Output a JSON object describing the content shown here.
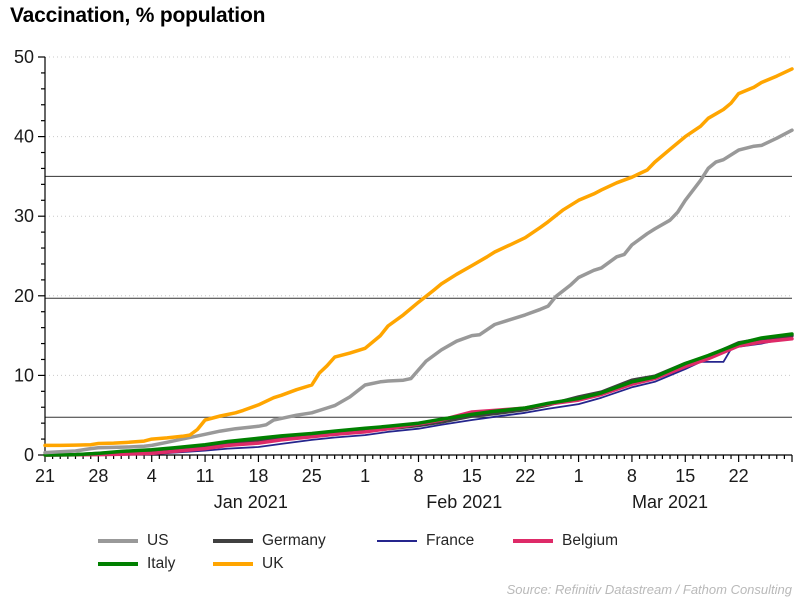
{
  "title": "Vaccination, % population",
  "source": "Source: Refinitiv Datastream / Fathom Consulting",
  "chart_data": {
    "type": "line",
    "title": "Vaccination, % population",
    "ylabel": "% population",
    "ylim": [
      0,
      50
    ],
    "y_ticks": [
      0,
      10,
      20,
      30,
      40,
      50
    ],
    "y_minor_step": 2,
    "grid": "dotted horizontal gridlines at major y ticks",
    "reference_lines": [
      4.75,
      19.7,
      35.0
    ],
    "x_start_date": "2020-12-21",
    "x_end_date": "2021-03-29",
    "x_days_total": 98,
    "x_tick_labels": [
      {
        "day": 0,
        "label": "21"
      },
      {
        "day": 7,
        "label": "28"
      },
      {
        "day": 14,
        "label": "4"
      },
      {
        "day": 21,
        "label": "11"
      },
      {
        "day": 28,
        "label": "18"
      },
      {
        "day": 35,
        "label": "25"
      },
      {
        "day": 42,
        "label": "1"
      },
      {
        "day": 49,
        "label": "8"
      },
      {
        "day": 56,
        "label": "15"
      },
      {
        "day": 63,
        "label": "22"
      },
      {
        "day": 70,
        "label": "1"
      },
      {
        "day": 77,
        "label": "8"
      },
      {
        "day": 84,
        "label": "15"
      },
      {
        "day": 91,
        "label": "22"
      }
    ],
    "month_labels": [
      {
        "day": 27,
        "label": "Jan 2021"
      },
      {
        "day": 55,
        "label": "Feb 2021"
      },
      {
        "day": 82,
        "label": "Mar 2021"
      }
    ],
    "legend_position": "bottom",
    "legend_order": [
      "US",
      "Germany",
      "France",
      "Belgium",
      "Italy",
      "UK"
    ],
    "series": [
      {
        "name": "France",
        "color": "#25258d",
        "width": 1.8,
        "points": [
          [
            0,
            0
          ],
          [
            10,
            0.05
          ],
          [
            14,
            0.1
          ],
          [
            17,
            0.3
          ],
          [
            21,
            0.55
          ],
          [
            24,
            0.8
          ],
          [
            28,
            1.0
          ],
          [
            31,
            1.4
          ],
          [
            35,
            1.9
          ],
          [
            38,
            2.2
          ],
          [
            42,
            2.5
          ],
          [
            45,
            2.9
          ],
          [
            49,
            3.3
          ],
          [
            52,
            3.8
          ],
          [
            56,
            4.4
          ],
          [
            59,
            4.8
          ],
          [
            63,
            5.3
          ],
          [
            66,
            5.8
          ],
          [
            70,
            6.4
          ],
          [
            73,
            7.2
          ],
          [
            77,
            8.5
          ],
          [
            80,
            9.2
          ],
          [
            84,
            10.8
          ],
          [
            86,
            11.7
          ],
          [
            89,
            11.7
          ],
          [
            90,
            13.3
          ],
          [
            91,
            13.6
          ],
          [
            94,
            14.0
          ],
          [
            98,
            14.8
          ]
        ]
      },
      {
        "name": "Germany",
        "color": "#404040",
        "width": 3.5,
        "points": [
          [
            0,
            0
          ],
          [
            4,
            0.02
          ],
          [
            7,
            0.2
          ],
          [
            10,
            0.35
          ],
          [
            14,
            0.5
          ],
          [
            17,
            0.75
          ],
          [
            21,
            1.1
          ],
          [
            24,
            1.4
          ],
          [
            28,
            1.75
          ],
          [
            31,
            2.0
          ],
          [
            35,
            2.35
          ],
          [
            38,
            2.6
          ],
          [
            42,
            3.0
          ],
          [
            45,
            3.3
          ],
          [
            49,
            3.7
          ],
          [
            52,
            4.15
          ],
          [
            56,
            4.9
          ],
          [
            59,
            5.2
          ],
          [
            63,
            5.7
          ],
          [
            66,
            6.3
          ],
          [
            70,
            7.3
          ],
          [
            73,
            7.9
          ],
          [
            77,
            9.4
          ],
          [
            80,
            9.9
          ],
          [
            84,
            11.5
          ],
          [
            87,
            12.4
          ],
          [
            91,
            14.1
          ],
          [
            94,
            14.6
          ],
          [
            98,
            15.0
          ]
        ]
      },
      {
        "name": "Belgium",
        "color": "#de2a68",
        "width": 3.5,
        "points": [
          [
            0,
            0
          ],
          [
            7,
            0.05
          ],
          [
            10,
            0.1
          ],
          [
            14,
            0.2
          ],
          [
            17,
            0.45
          ],
          [
            21,
            0.8
          ],
          [
            24,
            1.2
          ],
          [
            28,
            1.5
          ],
          [
            31,
            1.9
          ],
          [
            35,
            2.3
          ],
          [
            38,
            2.6
          ],
          [
            42,
            2.9
          ],
          [
            45,
            3.3
          ],
          [
            49,
            3.9
          ],
          [
            52,
            4.4
          ],
          [
            56,
            5.4
          ],
          [
            59,
            5.6
          ],
          [
            63,
            5.9
          ],
          [
            66,
            6.4
          ],
          [
            70,
            6.9
          ],
          [
            73,
            7.6
          ],
          [
            77,
            8.9
          ],
          [
            80,
            9.6
          ],
          [
            84,
            11.1
          ],
          [
            87,
            12.1
          ],
          [
            91,
            13.7
          ],
          [
            94,
            14.2
          ],
          [
            98,
            14.6
          ]
        ]
      },
      {
        "name": "Italy",
        "color": "#008000",
        "width": 3.5,
        "points": [
          [
            0,
            0
          ],
          [
            4,
            0.05
          ],
          [
            7,
            0.2
          ],
          [
            10,
            0.45
          ],
          [
            14,
            0.65
          ],
          [
            17,
            0.9
          ],
          [
            21,
            1.3
          ],
          [
            24,
            1.7
          ],
          [
            28,
            2.1
          ],
          [
            31,
            2.4
          ],
          [
            35,
            2.7
          ],
          [
            38,
            3.0
          ],
          [
            42,
            3.35
          ],
          [
            45,
            3.6
          ],
          [
            49,
            4.0
          ],
          [
            52,
            4.5
          ],
          [
            56,
            5.1
          ],
          [
            59,
            5.5
          ],
          [
            63,
            5.9
          ],
          [
            66,
            6.5
          ],
          [
            70,
            7.1
          ],
          [
            73,
            7.8
          ],
          [
            77,
            9.2
          ],
          [
            80,
            9.8
          ],
          [
            84,
            11.5
          ],
          [
            87,
            12.5
          ],
          [
            91,
            14.0
          ],
          [
            94,
            14.7
          ],
          [
            98,
            15.2
          ]
        ]
      },
      {
        "name": "US",
        "color": "#999999",
        "width": 3.5,
        "points": [
          [
            0,
            0.3
          ],
          [
            2,
            0.4
          ],
          [
            4,
            0.5
          ],
          [
            6,
            0.8
          ],
          [
            7,
            0.9
          ],
          [
            9,
            0.95
          ],
          [
            11,
            1.0
          ],
          [
            13,
            1.1
          ],
          [
            14,
            1.2
          ],
          [
            16,
            1.6
          ],
          [
            18,
            2.0
          ],
          [
            20,
            2.4
          ],
          [
            21,
            2.6
          ],
          [
            23,
            3.0
          ],
          [
            25,
            3.3
          ],
          [
            27,
            3.5
          ],
          [
            28,
            3.6
          ],
          [
            29,
            3.8
          ],
          [
            30,
            4.4
          ],
          [
            31,
            4.6
          ],
          [
            33,
            5.0
          ],
          [
            35,
            5.3
          ],
          [
            37,
            5.9
          ],
          [
            38,
            6.2
          ],
          [
            40,
            7.3
          ],
          [
            42,
            8.8
          ],
          [
            44,
            9.2
          ],
          [
            45,
            9.3
          ],
          [
            47,
            9.4
          ],
          [
            48,
            9.6
          ],
          [
            50,
            11.8
          ],
          [
            52,
            13.2
          ],
          [
            54,
            14.3
          ],
          [
            56,
            15.0
          ],
          [
            57,
            15.1
          ],
          [
            59,
            16.4
          ],
          [
            61,
            17.0
          ],
          [
            63,
            17.6
          ],
          [
            65,
            18.3
          ],
          [
            66,
            18.7
          ],
          [
            67,
            19.9
          ],
          [
            69,
            21.4
          ],
          [
            70,
            22.3
          ],
          [
            72,
            23.2
          ],
          [
            73,
            23.5
          ],
          [
            75,
            24.9
          ],
          [
            76,
            25.2
          ],
          [
            77,
            26.4
          ],
          [
            79,
            27.8
          ],
          [
            80,
            28.4
          ],
          [
            82,
            29.5
          ],
          [
            83,
            30.5
          ],
          [
            84,
            32.0
          ],
          [
            86,
            34.5
          ],
          [
            87,
            36.0
          ],
          [
            88,
            36.8
          ],
          [
            89,
            37.1
          ],
          [
            91,
            38.3
          ],
          [
            93,
            38.8
          ],
          [
            94,
            38.9
          ],
          [
            96,
            39.8
          ],
          [
            98,
            40.8
          ]
        ]
      },
      {
        "name": "UK",
        "color": "#ffa500",
        "width": 3.5,
        "points": [
          [
            0,
            1.2
          ],
          [
            2,
            1.2
          ],
          [
            4,
            1.25
          ],
          [
            6,
            1.3
          ],
          [
            7,
            1.45
          ],
          [
            9,
            1.5
          ],
          [
            11,
            1.6
          ],
          [
            13,
            1.75
          ],
          [
            14,
            2.0
          ],
          [
            16,
            2.15
          ],
          [
            18,
            2.35
          ],
          [
            19,
            2.5
          ],
          [
            20,
            3.2
          ],
          [
            21,
            4.4
          ],
          [
            23,
            4.9
          ],
          [
            25,
            5.3
          ],
          [
            26,
            5.6
          ],
          [
            28,
            6.3
          ],
          [
            30,
            7.2
          ],
          [
            31,
            7.5
          ],
          [
            33,
            8.2
          ],
          [
            35,
            8.8
          ],
          [
            36,
            10.3
          ],
          [
            37,
            11.2
          ],
          [
            38,
            12.3
          ],
          [
            40,
            12.8
          ],
          [
            42,
            13.4
          ],
          [
            44,
            15.0
          ],
          [
            45,
            16.2
          ],
          [
            47,
            17.6
          ],
          [
            49,
            19.2
          ],
          [
            51,
            20.7
          ],
          [
            52,
            21.5
          ],
          [
            54,
            22.7
          ],
          [
            56,
            23.8
          ],
          [
            58,
            24.9
          ],
          [
            59,
            25.5
          ],
          [
            61,
            26.4
          ],
          [
            63,
            27.3
          ],
          [
            65,
            28.6
          ],
          [
            66,
            29.3
          ],
          [
            68,
            30.8
          ],
          [
            70,
            32.0
          ],
          [
            72,
            32.8
          ],
          [
            73,
            33.3
          ],
          [
            75,
            34.2
          ],
          [
            77,
            34.9
          ],
          [
            79,
            35.8
          ],
          [
            80,
            36.8
          ],
          [
            82,
            38.4
          ],
          [
            84,
            40.0
          ],
          [
            86,
            41.3
          ],
          [
            87,
            42.3
          ],
          [
            89,
            43.4
          ],
          [
            90,
            44.2
          ],
          [
            91,
            45.4
          ],
          [
            93,
            46.2
          ],
          [
            94,
            46.8
          ],
          [
            96,
            47.6
          ],
          [
            98,
            48.5
          ]
        ]
      }
    ],
    "colors": {
      "US": "#999999",
      "Germany": "#404040",
      "France": "#25258d",
      "Belgium": "#de2a68",
      "Italy": "#008000",
      "UK": "#ffa500"
    }
  }
}
